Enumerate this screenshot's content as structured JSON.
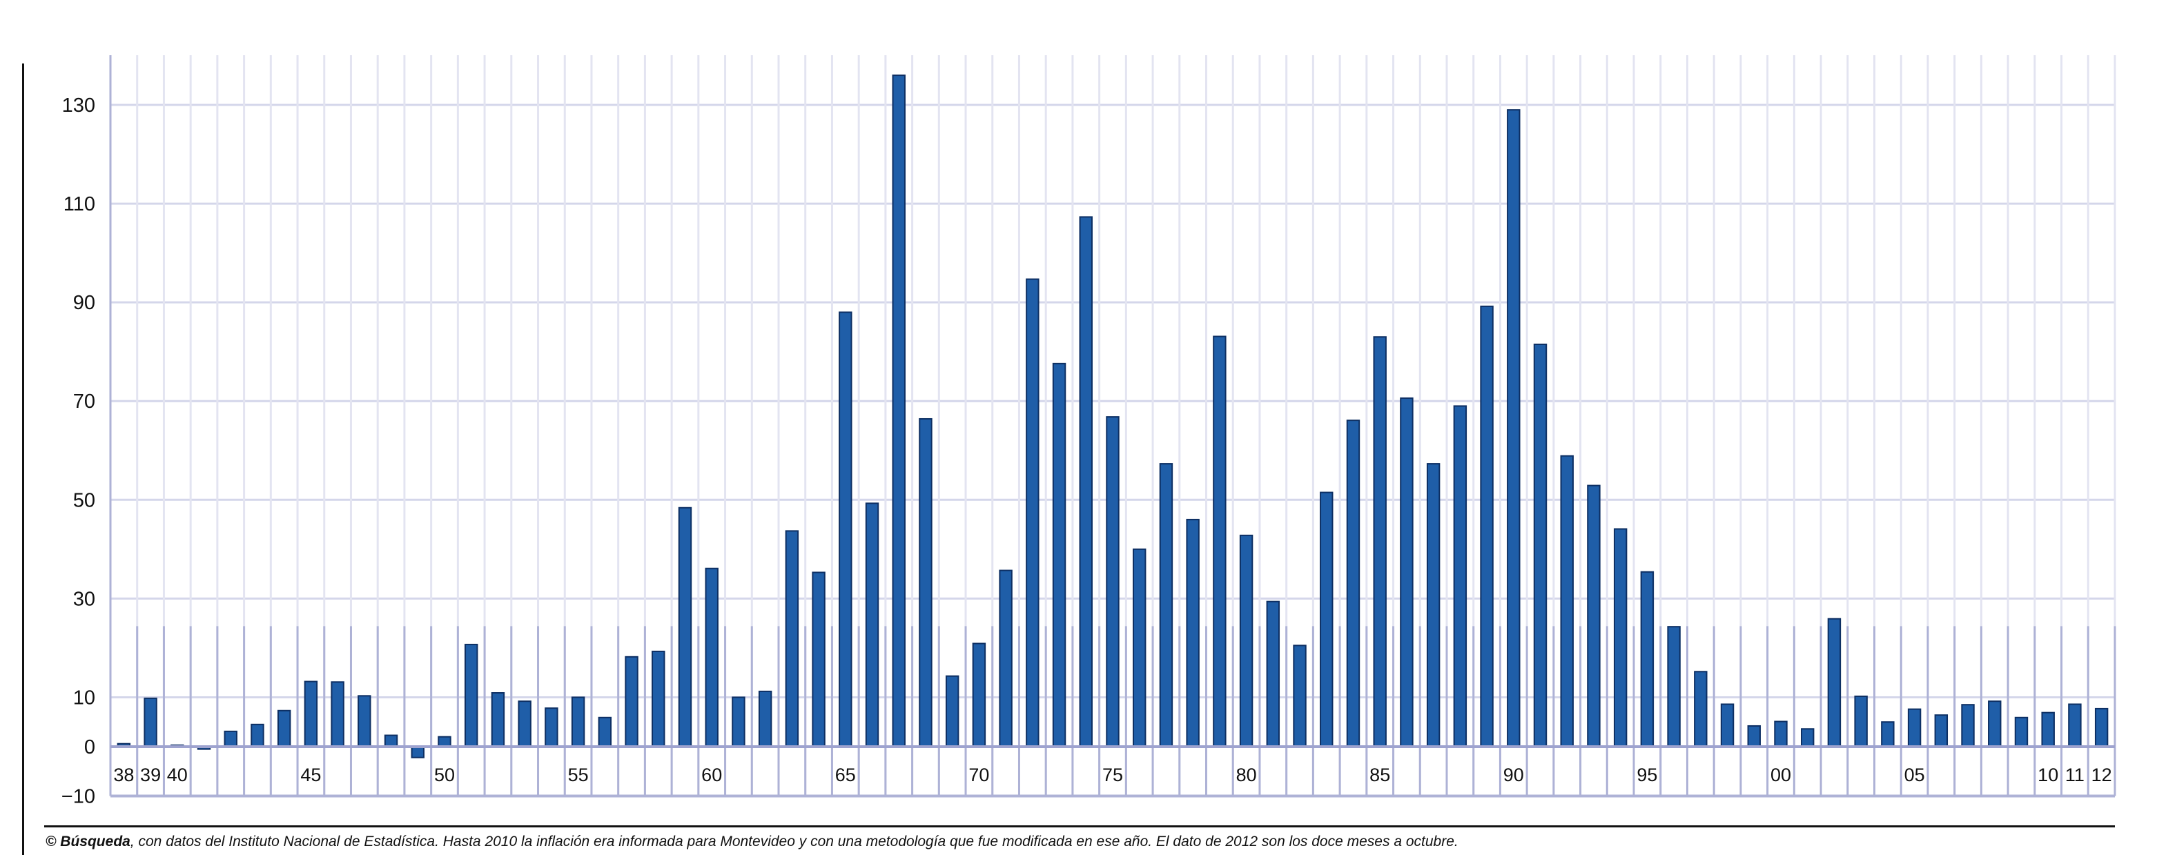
{
  "chart_data": {
    "type": "bar",
    "title": "",
    "xlabel": "",
    "ylabel": "",
    "ylim": [
      -10,
      140
    ],
    "yticks": [
      -10,
      0,
      10,
      30,
      50,
      70,
      90,
      110,
      130
    ],
    "ytick_labels": [
      "−10",
      "0",
      "10",
      "30",
      "50",
      "70",
      "90",
      "110",
      "130"
    ],
    "grid": true,
    "bar_color": "#1f5ea8",
    "categories": [
      1938,
      1939,
      1940,
      1941,
      1942,
      1943,
      1944,
      1945,
      1946,
      1947,
      1948,
      1949,
      1950,
      1951,
      1952,
      1953,
      1954,
      1955,
      1956,
      1957,
      1958,
      1959,
      1960,
      1961,
      1962,
      1963,
      1964,
      1965,
      1966,
      1967,
      1968,
      1969,
      1970,
      1971,
      1972,
      1973,
      1974,
      1975,
      1976,
      1977,
      1978,
      1979,
      1980,
      1981,
      1982,
      1983,
      1984,
      1985,
      1986,
      1987,
      1988,
      1989,
      1990,
      1991,
      1992,
      1993,
      1994,
      1995,
      1996,
      1997,
      1998,
      1999,
      2000,
      2001,
      2002,
      2003,
      2004,
      2005,
      2006,
      2007,
      2008,
      2009,
      2010,
      2011,
      2012
    ],
    "values": [
      0.6,
      9.8,
      0.3,
      -0.5,
      3.1,
      4.5,
      7.3,
      13.2,
      13.1,
      10.3,
      2.3,
      -2.2,
      2.0,
      20.7,
      10.9,
      9.2,
      7.8,
      10.0,
      5.9,
      18.2,
      19.3,
      48.4,
      36.1,
      10.0,
      11.2,
      43.7,
      35.3,
      88.0,
      49.3,
      136.0,
      66.4,
      14.3,
      20.9,
      35.7,
      94.7,
      77.6,
      107.3,
      66.8,
      40.0,
      57.3,
      46.0,
      83.1,
      42.8,
      29.4,
      20.5,
      51.5,
      66.1,
      83.0,
      70.6,
      57.3,
      69.0,
      89.2,
      129.0,
      81.5,
      58.9,
      52.9,
      44.1,
      35.4,
      24.3,
      15.2,
      8.6,
      4.2,
      5.1,
      3.6,
      25.9,
      10.2,
      5.0,
      7.6,
      6.4,
      8.5,
      9.2,
      5.9,
      6.9,
      8.6,
      7.7
    ],
    "x_tick_labels": [
      {
        "year": 1938,
        "label": "38"
      },
      {
        "year": 1939,
        "label": "39"
      },
      {
        "year": 1940,
        "label": "40"
      },
      {
        "year": 1945,
        "label": "45"
      },
      {
        "year": 1950,
        "label": "50"
      },
      {
        "year": 1955,
        "label": "55"
      },
      {
        "year": 1960,
        "label": "60"
      },
      {
        "year": 1965,
        "label": "65"
      },
      {
        "year": 1970,
        "label": "70"
      },
      {
        "year": 1975,
        "label": "75"
      },
      {
        "year": 1980,
        "label": "80"
      },
      {
        "year": 1985,
        "label": "85"
      },
      {
        "year": 1990,
        "label": "90"
      },
      {
        "year": 1995,
        "label": "95"
      },
      {
        "year": 2000,
        "label": "00"
      },
      {
        "year": 2005,
        "label": "05"
      },
      {
        "year": 2010,
        "label": "10"
      },
      {
        "year": 2011,
        "label": "11"
      },
      {
        "year": 2012,
        "label": "12"
      }
    ]
  },
  "footer": {
    "brand": "© Búsqueda",
    "text": ", con datos del Instituto Nacional de Estadística. Hasta 2010 la inflación era informada para Montevideo y con una metodología que fue modificada en ese año. El dato de 2012 son los doce meses a octubre."
  }
}
